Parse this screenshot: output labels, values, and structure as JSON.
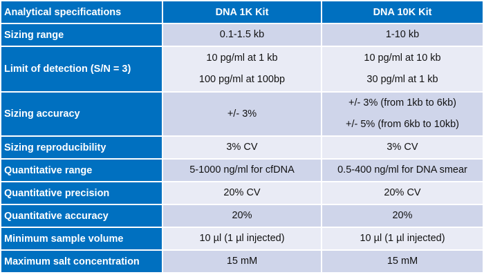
{
  "headers": [
    "Analytical specifications",
    "DNA 1K Kit",
    "DNA 10K Kit"
  ],
  "rows": [
    {
      "label": "Sizing range",
      "k1": [
        "0.1-1.5 kb"
      ],
      "k10": [
        "1-10 kb"
      ]
    },
    {
      "label": "Limit of detection (S/N = 3)",
      "k1": [
        "10 pg/ml at 1 kb",
        "100 pg/ml at 100bp"
      ],
      "k10": [
        "10 pg/ml at 10 kb",
        "30 pg/ml at 1 kb"
      ]
    },
    {
      "label": "Sizing accuracy",
      "k1": [
        "+/- 3%"
      ],
      "k10": [
        "+/- 3% (from 1kb to 6kb)",
        "+/- 5% (from 6kb to 10kb)"
      ]
    },
    {
      "label": "Sizing reproducibility",
      "k1": [
        "3% CV"
      ],
      "k10": [
        "3% CV"
      ]
    },
    {
      "label": "Quantitative range",
      "k1": [
        "5-1000 ng/ml for cfDNA"
      ],
      "k10": [
        "0.5-400 ng/ml for DNA smear"
      ]
    },
    {
      "label": "Quantitative precision",
      "k1": [
        "20% CV"
      ],
      "k10": [
        "20% CV"
      ]
    },
    {
      "label": "Quantitative accuracy",
      "k1": [
        "20%"
      ],
      "k10": [
        "20%"
      ]
    },
    {
      "label": "Minimum sample volume",
      "k1": [
        "10 µl (1 µl injected)"
      ],
      "k10": [
        "10 µl (1 µl injected)"
      ]
    },
    {
      "label": "Maximum salt concentration",
      "k1": [
        "15 mM"
      ],
      "k10": [
        "15 mM"
      ]
    }
  ]
}
